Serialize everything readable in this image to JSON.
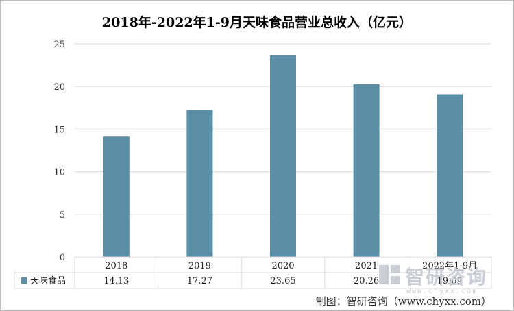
{
  "chart_data": {
    "type": "bar",
    "title": "2018年-2022年1-9月天味食品营业总收入（亿元）",
    "categories": [
      "2018",
      "2019",
      "2020",
      "2021",
      "2022年1-9月"
    ],
    "series": [
      {
        "name": "天味食品",
        "values": [
          14.13,
          17.27,
          23.65,
          20.26,
          19.09
        ],
        "color": "#5b8fa8"
      }
    ],
    "ylim": [
      0,
      25
    ],
    "yticks": [
      0,
      5,
      10,
      15,
      20,
      25
    ],
    "grid": true,
    "data_table": true,
    "legend_position": "data-table-row"
  },
  "watermark": {
    "text": "智研咨询",
    "sub": "www.chyxx.com",
    "icon": "chyxx-logo-icon"
  },
  "credit": "制图：智研咨询（www.chyxx.com）"
}
